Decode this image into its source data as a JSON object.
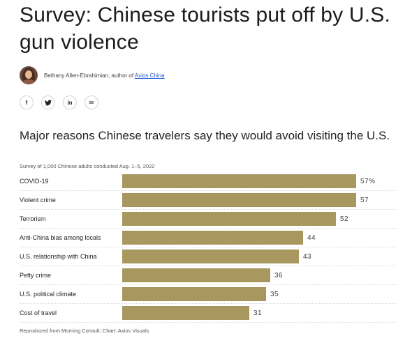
{
  "article": {
    "headline": "Survey: Chinese tourists put off by U.S. gun violence",
    "byline_prefix": "Bethany Allen-Ebrahimian, author of ",
    "byline_link": "Axios China",
    "share_icons": [
      "facebook-icon",
      "twitter-icon",
      "linkedin-icon",
      "email-icon"
    ],
    "share_glyphs": [
      "f",
      "t",
      "in",
      "✉"
    ]
  },
  "chart_data": {
    "type": "bar",
    "orientation": "horizontal",
    "title": "Major reasons Chinese travelers say they would avoid visiting the U.S.",
    "subtitle": "Survey of 1,000 Chinese adults conducted Aug. 1–5, 2022",
    "source": "Reproduced from Morning Consult; Chart: Axios Visuals",
    "categories": [
      "COVID-19",
      "Violent crime",
      "Terrorism",
      "Anti-China bias among locals",
      "U.S. relationship with China",
      "Petty crime",
      "U.S. political climate",
      "Cost of travel"
    ],
    "values": [
      57,
      57,
      52,
      44,
      43,
      36,
      35,
      31
    ],
    "value_labels": [
      "57%",
      "57",
      "52",
      "44",
      "43",
      "36",
      "35",
      "31"
    ],
    "xlim": [
      0,
      57
    ],
    "bar_color": "#a8985f"
  }
}
